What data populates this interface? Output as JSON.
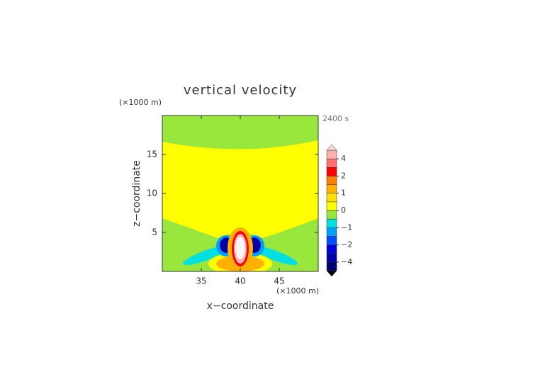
{
  "chart_data": {
    "type": "contour",
    "title": "vertical velocity",
    "xlabel": "x−coordinate",
    "ylabel": "z−coordinate",
    "x_unit": "(×1000 m)",
    "y_unit": "(×1000 m)",
    "time_label": "2400 s",
    "xlim": [
      30,
      50
    ],
    "xticks": [
      35,
      40,
      45
    ],
    "ylim": [
      0,
      20
    ],
    "yticks": [
      5,
      10,
      15
    ],
    "colorbar": {
      "levels": [
        -5,
        -4,
        -3,
        -2,
        -1.5,
        -1,
        -0.5,
        0,
        0.5,
        1,
        1.5,
        2,
        3,
        4,
        5
      ],
      "colors": [
        "#000070",
        "#0000a8",
        "#0000d8",
        "#0050ff",
        "#00a0ff",
        "#00e0e0",
        "#99e63c",
        "#ffff00",
        "#ffe000",
        "#ffb000",
        "#ff8000",
        "#ff0000",
        "#ff7070",
        "#ffb0b0"
      ],
      "ticks": [
        {
          "value": -4,
          "label": "−4"
        },
        {
          "value": -2,
          "label": "−2"
        },
        {
          "value": -1,
          "label": "−1"
        },
        0,
        1,
        2,
        4
      ]
    }
  }
}
